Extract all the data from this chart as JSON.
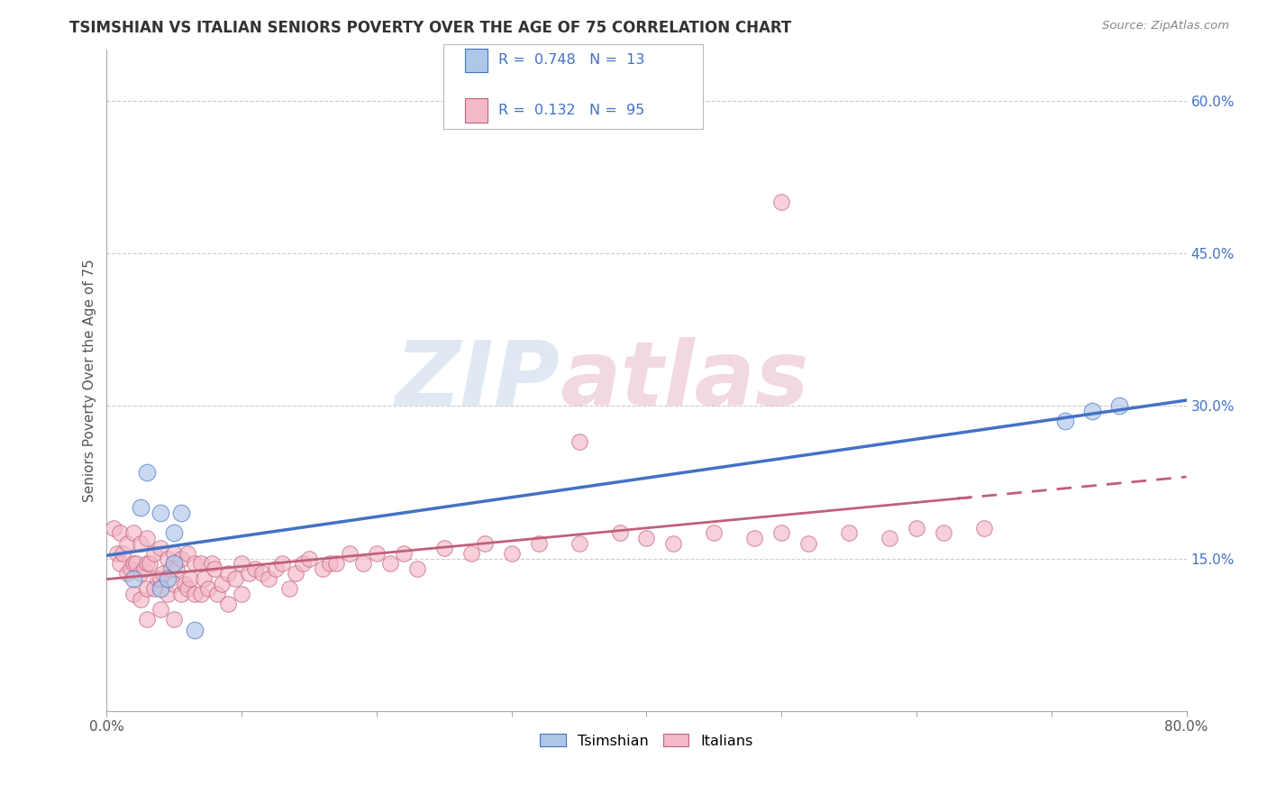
{
  "title": "TSIMSHIAN VS ITALIAN SENIORS POVERTY OVER THE AGE OF 75 CORRELATION CHART",
  "source": "Source: ZipAtlas.com",
  "ylabel": "Seniors Poverty Over the Age of 75",
  "xlim": [
    0.0,
    0.8
  ],
  "ylim": [
    0.0,
    0.65
  ],
  "xticks": [
    0.0,
    0.1,
    0.2,
    0.3,
    0.4,
    0.5,
    0.6,
    0.7,
    0.8
  ],
  "xticklabels": [
    "0.0%",
    "",
    "",
    "",
    "",
    "",
    "",
    "",
    "80.0%"
  ],
  "ytick_positions": [
    0.15,
    0.3,
    0.45,
    0.6
  ],
  "ytick_labels": [
    "15.0%",
    "30.0%",
    "45.0%",
    "60.0%"
  ],
  "tsimshian_R": 0.748,
  "tsimshian_N": 13,
  "italian_R": 0.132,
  "italian_N": 95,
  "tsimshian_color": "#aec6e8",
  "italian_color": "#f4b8c8",
  "trend_blue": "#4472c4",
  "trend_pink": "#c0607a",
  "watermark_zip": "ZIP",
  "watermark_atlas": "atlas",
  "tsimshian_x": [
    0.02,
    0.025,
    0.03,
    0.04,
    0.04,
    0.045,
    0.05,
    0.05,
    0.055,
    0.065,
    0.71,
    0.73,
    0.75
  ],
  "tsimshian_y": [
    0.13,
    0.2,
    0.235,
    0.12,
    0.195,
    0.13,
    0.145,
    0.175,
    0.195,
    0.08,
    0.285,
    0.295,
    0.3
  ],
  "italian_x": [
    0.005,
    0.008,
    0.01,
    0.01,
    0.012,
    0.015,
    0.015,
    0.018,
    0.02,
    0.02,
    0.02,
    0.022,
    0.025,
    0.025,
    0.025,
    0.028,
    0.03,
    0.03,
    0.03,
    0.03,
    0.032,
    0.035,
    0.035,
    0.038,
    0.04,
    0.04,
    0.04,
    0.042,
    0.045,
    0.045,
    0.048,
    0.05,
    0.05,
    0.05,
    0.052,
    0.055,
    0.055,
    0.058,
    0.06,
    0.06,
    0.062,
    0.065,
    0.065,
    0.07,
    0.07,
    0.072,
    0.075,
    0.078,
    0.08,
    0.082,
    0.085,
    0.09,
    0.09,
    0.095,
    0.1,
    0.1,
    0.105,
    0.11,
    0.115,
    0.12,
    0.125,
    0.13,
    0.135,
    0.14,
    0.145,
    0.15,
    0.16,
    0.165,
    0.17,
    0.18,
    0.19,
    0.2,
    0.21,
    0.22,
    0.23,
    0.25,
    0.27,
    0.28,
    0.3,
    0.32,
    0.35,
    0.38,
    0.4,
    0.42,
    0.45,
    0.48,
    0.5,
    0.52,
    0.55,
    0.58,
    0.6,
    0.62,
    0.65,
    0.35,
    0.5
  ],
  "italian_y": [
    0.18,
    0.155,
    0.175,
    0.145,
    0.155,
    0.165,
    0.135,
    0.14,
    0.175,
    0.145,
    0.115,
    0.145,
    0.165,
    0.135,
    0.11,
    0.14,
    0.17,
    0.145,
    0.12,
    0.09,
    0.145,
    0.155,
    0.12,
    0.13,
    0.16,
    0.13,
    0.1,
    0.135,
    0.15,
    0.115,
    0.14,
    0.155,
    0.125,
    0.09,
    0.14,
    0.15,
    0.115,
    0.125,
    0.155,
    0.12,
    0.13,
    0.145,
    0.115,
    0.145,
    0.115,
    0.13,
    0.12,
    0.145,
    0.14,
    0.115,
    0.125,
    0.135,
    0.105,
    0.13,
    0.145,
    0.115,
    0.135,
    0.14,
    0.135,
    0.13,
    0.14,
    0.145,
    0.12,
    0.135,
    0.145,
    0.15,
    0.14,
    0.145,
    0.145,
    0.155,
    0.145,
    0.155,
    0.145,
    0.155,
    0.14,
    0.16,
    0.155,
    0.165,
    0.155,
    0.165,
    0.165,
    0.175,
    0.17,
    0.165,
    0.175,
    0.17,
    0.175,
    0.165,
    0.175,
    0.17,
    0.18,
    0.175,
    0.18,
    0.265,
    0.5
  ],
  "background_color": "#ffffff",
  "grid_color": "#cccccc",
  "axis_color": "#aaaaaa",
  "title_fontsize": 12,
  "tick_fontsize": 11
}
